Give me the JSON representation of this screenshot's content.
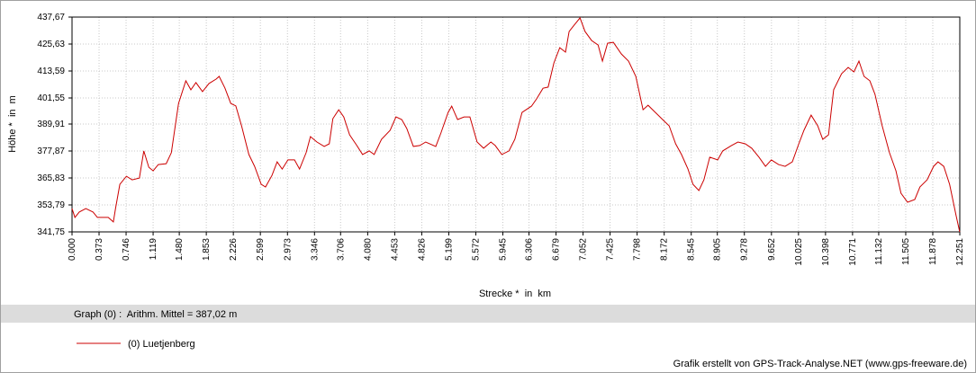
{
  "chart_data": {
    "type": "line",
    "xlabel": "Strecke *  in  km",
    "ylabel": "Höhe *  in  m",
    "summary": "Graph (0) :  Arithm. Mittel = 387,02 m",
    "credit": "Grafik erstellt von GPS-Track-Analyse.NET (www.gps-freeware.de)",
    "grid": true,
    "xlim": [
      0,
      12.251
    ],
    "ylim": [
      341.75,
      437.67
    ],
    "xticks": [
      {
        "value": 0,
        "label": "0.000"
      },
      0.373,
      0.746,
      1.119,
      {
        "value": 1.48,
        "label": "1.480"
      },
      1.853,
      2.226,
      2.599,
      2.973,
      3.346,
      3.706,
      {
        "value": 4.08,
        "label": "4.080"
      },
      4.453,
      4.826,
      5.199,
      5.572,
      5.945,
      6.306,
      6.679,
      7.052,
      7.425,
      7.798,
      8.172,
      8.545,
      8.905,
      9.278,
      9.652,
      10.025,
      10.398,
      10.771,
      11.132,
      11.505,
      11.878,
      12.251
    ],
    "yticks": [
      {
        "value": 341.75,
        "label": "341,75"
      },
      {
        "value": 353.79,
        "label": "353,79"
      },
      {
        "value": 365.83,
        "label": "365,83"
      },
      {
        "value": 377.87,
        "label": "377,87"
      },
      {
        "value": 389.91,
        "label": "389,91"
      },
      {
        "value": 401.55,
        "label": "401,55"
      },
      {
        "value": 413.59,
        "label": "413,59"
      },
      {
        "value": 425.63,
        "label": "425,63"
      },
      {
        "value": 437.67,
        "label": "437,67"
      }
    ],
    "x": [
      0,
      0.04,
      0.1,
      0.19,
      0.29,
      0.35,
      0.5,
      0.57,
      0.6,
      0.66,
      0.75,
      0.83,
      0.93,
      0.99,
      1.06,
      1.12,
      1.19,
      1.3,
      1.37,
      1.47,
      1.57,
      1.64,
      1.71,
      1.8,
      1.89,
      1.99,
      2.03,
      2.11,
      2.19,
      2.26,
      2.34,
      2.44,
      2.52,
      2.61,
      2.67,
      2.76,
      2.83,
      2.9,
      2.98,
      3.07,
      3.14,
      3.23,
      3.29,
      3.38,
      3.48,
      3.55,
      3.6,
      3.68,
      3.75,
      3.83,
      3.93,
      4.01,
      4.1,
      4.17,
      4.27,
      4.39,
      4.47,
      4.55,
      4.62,
      4.71,
      4.8,
      4.88,
      5.02,
      5.09,
      5.19,
      5.24,
      5.32,
      5.41,
      5.49,
      5.59,
      5.68,
      5.78,
      5.84,
      5.93,
      6.03,
      6.11,
      6.21,
      6.34,
      6.41,
      6.5,
      6.57,
      6.65,
      6.73,
      6.81,
      6.86,
      6.93,
      7.01,
      7.08,
      7.17,
      7.26,
      7.32,
      7.39,
      7.47,
      7.58,
      7.68,
      7.78,
      7.88,
      7.95,
      8.05,
      8.15,
      8.24,
      8.33,
      8.41,
      8.5,
      8.57,
      8.65,
      8.72,
      8.8,
      8.91,
      8.98,
      9.1,
      9.19,
      9.29,
      9.38,
      9.48,
      9.57,
      9.65,
      9.75,
      9.84,
      9.94,
      10.03,
      10.1,
      10.2,
      10.29,
      10.36,
      10.44,
      10.51,
      10.62,
      10.71,
      10.79,
      10.86,
      10.93,
      11.01,
      11.08,
      11.18,
      11.28,
      11.37,
      11.44,
      11.53,
      11.63,
      11.7,
      11.8,
      11.89,
      11.95,
      12.03,
      12.11,
      12.2,
      12.25
    ],
    "series": [
      {
        "name": "(0) Luetjenberg",
        "color": "#cc0000",
        "values": [
          352.2,
          348.2,
          350.6,
          352.2,
          350.6,
          348.2,
          348.2,
          346.2,
          352.2,
          363.0,
          366.6,
          365.0,
          365.8,
          377.9,
          370.6,
          369.0,
          371.8,
          372.2,
          377.1,
          399.1,
          409.2,
          405.2,
          408.4,
          404.4,
          408.0,
          410.0,
          411.2,
          406.0,
          399.1,
          398.0,
          389.1,
          376.3,
          371.0,
          363.0,
          361.8,
          367.0,
          373.0,
          369.8,
          373.9,
          373.9,
          369.8,
          377.1,
          384.3,
          381.9,
          379.9,
          381.1,
          392.3,
          396.3,
          393.1,
          385.1,
          380.3,
          376.3,
          377.9,
          376.3,
          383.1,
          387.1,
          393.1,
          391.9,
          387.9,
          379.9,
          380.3,
          381.9,
          379.9,
          385.9,
          395.1,
          397.9,
          391.9,
          393.1,
          393.1,
          381.9,
          379.1,
          381.9,
          380.3,
          376.3,
          377.9,
          383.1,
          395.1,
          397.9,
          401.1,
          405.9,
          406.4,
          417.2,
          424.0,
          422.0,
          431.2,
          434.1,
          437.3,
          431.2,
          427.2,
          425.2,
          418.0,
          426.0,
          426.4,
          421.2,
          418.0,
          411.2,
          396.3,
          398.3,
          395.1,
          391.9,
          389.1,
          381.1,
          376.3,
          369.8,
          363.0,
          360.2,
          365.0,
          375.1,
          373.9,
          377.9,
          380.3,
          381.9,
          381.1,
          379.1,
          375.1,
          371.0,
          373.9,
          371.8,
          371.0,
          373.0,
          381.1,
          387.1,
          393.9,
          389.1,
          383.1,
          385.1,
          405.2,
          412.4,
          415.2,
          413.2,
          418.0,
          411.2,
          409.2,
          403.2,
          389.1,
          377.1,
          369.0,
          359.0,
          355.0,
          356.2,
          361.8,
          365.0,
          371.0,
          373.0,
          371.0,
          363.0,
          349.0,
          341.75
        ]
      }
    ]
  }
}
